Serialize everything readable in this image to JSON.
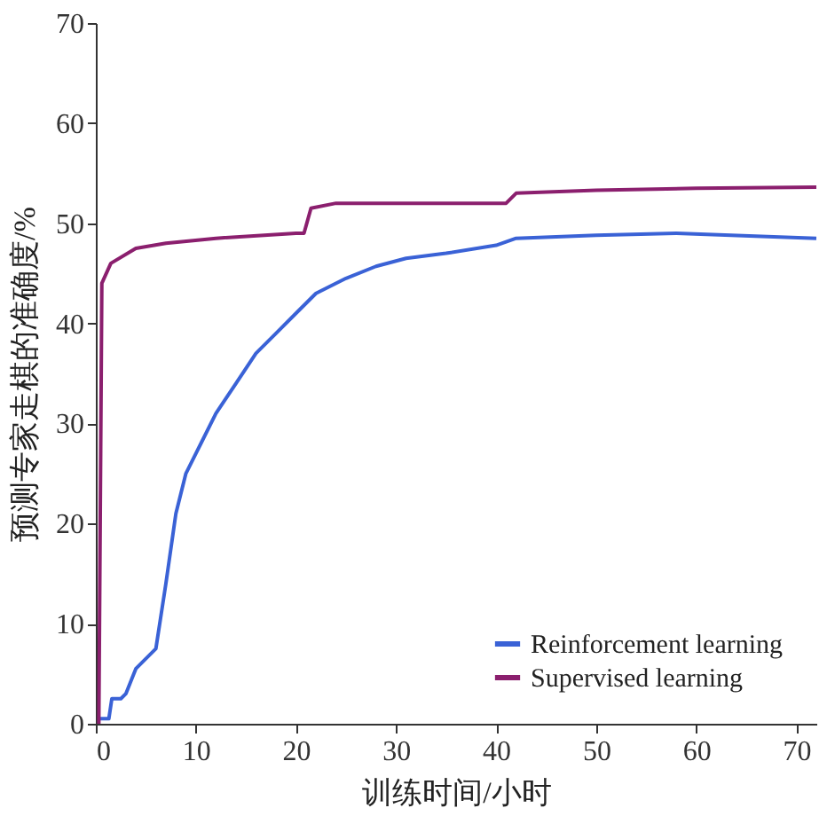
{
  "chart_data": {
    "type": "line",
    "xlabel": "训练时间/小时",
    "ylabel": "预测专家走棋的准确度/%",
    "xlim": [
      0,
      72
    ],
    "ylim": [
      0,
      70
    ],
    "xticks": [
      0,
      10,
      20,
      30,
      40,
      50,
      60,
      70
    ],
    "yticks": [
      0,
      10,
      20,
      30,
      40,
      50,
      60,
      70
    ],
    "grid": false,
    "legend": "bottom right",
    "marker": "none",
    "line_style": "solid",
    "series": [
      {
        "name": "Reinforcement learning",
        "color": "#3a62d6",
        "x": [
          0.3,
          1.3,
          1.6,
          2.5,
          3,
          4,
          5,
          6,
          7,
          8,
          9,
          10.5,
          12,
          14,
          16,
          18,
          20,
          22,
          25,
          28,
          31,
          35,
          40,
          42,
          50,
          58,
          72
        ],
        "values": [
          0.5,
          0.5,
          2.5,
          2.5,
          3,
          5.5,
          6.5,
          7.5,
          14,
          21,
          25,
          28,
          31,
          34,
          37,
          39,
          41,
          43,
          44.5,
          45.7,
          46.5,
          47,
          47.8,
          48.5,
          48.8,
          49,
          48.5
        ]
      },
      {
        "name": "Supervised learning",
        "color": "#8b1f6e",
        "x": [
          0.3,
          0.6,
          1.5,
          4,
          7,
          12,
          20,
          20.8,
          21.5,
          24,
          41,
          42,
          50,
          60,
          72
        ],
        "values": [
          0,
          44,
          46,
          47.5,
          48,
          48.5,
          49,
          49,
          51.5,
          52,
          52,
          53,
          53.3,
          53.5,
          53.6
        ]
      }
    ]
  }
}
